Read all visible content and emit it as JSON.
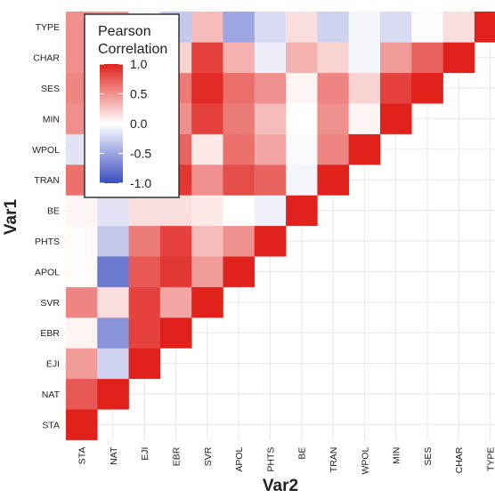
{
  "chart_data": {
    "type": "heatmap",
    "title": "",
    "xlabel": "Var2",
    "ylabel": "Var1",
    "x_categories": [
      "STA",
      "NAT",
      "EJI",
      "EBR",
      "SVR",
      "APOL",
      "PHTS",
      "BE",
      "TRAN",
      "WPOL",
      "MIN",
      "SES",
      "CHAR",
      "TYPE"
    ],
    "y_categories": [
      "STA",
      "NAT",
      "EJI",
      "EBR",
      "SVR",
      "APOL",
      "PHTS",
      "BE",
      "TRAN",
      "WPOL",
      "MIN",
      "SES",
      "CHAR",
      "TYPE"
    ],
    "matrix": [
      [
        1.0,
        0.75,
        0.45,
        0.05,
        0.55,
        0.02,
        0.02,
        0.05,
        0.65,
        -0.15,
        0.5,
        0.55,
        0.5,
        0.5
      ],
      [
        null,
        1.0,
        -0.25,
        -0.6,
        0.15,
        -0.75,
        -0.3,
        -0.15,
        -0.35,
        -0.35,
        0.05,
        0.05,
        0.1,
        0.45
      ],
      [
        null,
        null,
        1.0,
        0.85,
        0.85,
        0.75,
        0.6,
        0.15,
        0.75,
        0.35,
        0.8,
        0.9,
        0.75,
        -0.05
      ],
      [
        null,
        null,
        null,
        1.0,
        0.4,
        0.9,
        0.85,
        0.15,
        0.9,
        0.7,
        0.5,
        0.6,
        0.2,
        -0.3
      ],
      [
        null,
        null,
        null,
        null,
        1.0,
        0.45,
        0.3,
        0.1,
        0.5,
        0.1,
        0.85,
        0.95,
        0.85,
        0.3
      ],
      [
        null,
        null,
        null,
        null,
        null,
        1.0,
        0.5,
        0.0,
        0.8,
        0.65,
        0.6,
        0.65,
        0.35,
        -0.5
      ],
      [
        null,
        null,
        null,
        null,
        null,
        null,
        1.0,
        -0.08,
        0.7,
        0.4,
        0.3,
        0.5,
        -0.1,
        -0.2
      ],
      [
        null,
        null,
        null,
        null,
        null,
        null,
        null,
        1.0,
        -0.05,
        -0.02,
        0.0,
        0.05,
        0.35,
        0.15
      ],
      [
        null,
        null,
        null,
        null,
        null,
        null,
        null,
        null,
        1.0,
        0.55,
        0.5,
        0.55,
        0.2,
        -0.25
      ],
      [
        null,
        null,
        null,
        null,
        null,
        null,
        null,
        null,
        null,
        1.0,
        0.05,
        0.2,
        -0.05,
        -0.05
      ],
      [
        null,
        null,
        null,
        null,
        null,
        null,
        null,
        null,
        null,
        null,
        1.0,
        0.85,
        0.45,
        -0.2
      ],
      [
        null,
        null,
        null,
        null,
        null,
        null,
        null,
        null,
        null,
        null,
        null,
        1.0,
        0.7,
        0.02
      ],
      [
        null,
        null,
        null,
        null,
        null,
        null,
        null,
        null,
        null,
        null,
        null,
        null,
        1.0,
        0.15
      ],
      [
        null,
        null,
        null,
        null,
        null,
        null,
        null,
        null,
        null,
        null,
        null,
        null,
        null,
        1.0
      ]
    ],
    "legend": {
      "title": [
        "Pearson",
        "Correlation"
      ],
      "ticks": [
        "1.0",
        "0.5",
        "0.0",
        "-0.5",
        "-1.0"
      ],
      "placement": "top-left"
    },
    "color_scale": {
      "low": "#3b4cc0",
      "mid": "#ffffff",
      "high": "#e0211c",
      "limits": [
        -1,
        1
      ]
    },
    "grid": true
  }
}
